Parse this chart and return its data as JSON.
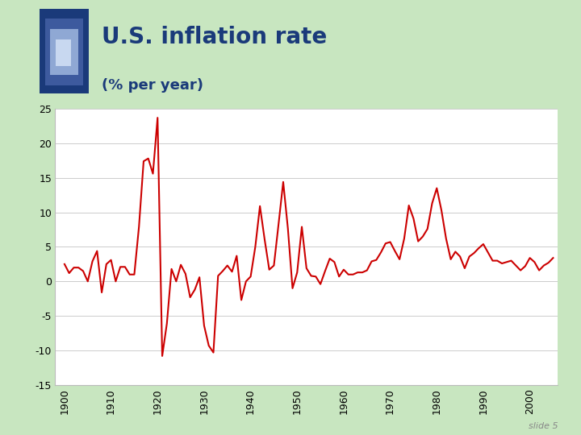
{
  "title": "U.S. inflation rate",
  "subtitle": "(% per year)",
  "title_color": "#1a3a7a",
  "subtitle_color": "#1a3a7a",
  "line_color": "#cc0000",
  "background_color": "#ffffff",
  "slide_bg_color": "#c8e6c0",
  "ylim": [
    -15,
    25
  ],
  "yticks": [
    -15,
    -10,
    -5,
    0,
    5,
    10,
    15,
    20,
    25
  ],
  "xtick_years": [
    1900,
    1910,
    1920,
    1930,
    1940,
    1950,
    1960,
    1970,
    1980,
    1990,
    2000
  ],
  "slide_label": "slide 5",
  "years": [
    1900,
    1901,
    1902,
    1903,
    1904,
    1905,
    1906,
    1907,
    1908,
    1909,
    1910,
    1911,
    1912,
    1913,
    1914,
    1915,
    1916,
    1917,
    1918,
    1919,
    1920,
    1921,
    1922,
    1923,
    1924,
    1925,
    1926,
    1927,
    1928,
    1929,
    1930,
    1931,
    1932,
    1933,
    1934,
    1935,
    1936,
    1937,
    1938,
    1939,
    1940,
    1941,
    1942,
    1943,
    1944,
    1945,
    1946,
    1947,
    1948,
    1949,
    1950,
    1951,
    1952,
    1953,
    1954,
    1955,
    1956,
    1957,
    1958,
    1959,
    1960,
    1961,
    1962,
    1963,
    1964,
    1965,
    1966,
    1967,
    1968,
    1969,
    1970,
    1971,
    1972,
    1973,
    1974,
    1975,
    1976,
    1977,
    1978,
    1979,
    1980,
    1981,
    1982,
    1983,
    1984,
    1985,
    1986,
    1987,
    1988,
    1989,
    1990,
    1991,
    1992,
    1993,
    1994,
    1995,
    1996,
    1997,
    1998,
    1999,
    2000,
    2001,
    2002,
    2003,
    2004,
    2005
  ],
  "inflation": [
    2.5,
    1.2,
    2.0,
    2.0,
    1.5,
    0.0,
    2.9,
    4.4,
    -1.6,
    2.5,
    3.1,
    0.0,
    2.1,
    2.1,
    1.0,
    1.0,
    7.9,
    17.4,
    17.8,
    15.6,
    23.7,
    -10.8,
    -6.1,
    1.8,
    0.0,
    2.4,
    1.1,
    -2.3,
    -1.2,
    0.6,
    -6.4,
    -9.3,
    -10.3,
    0.8,
    1.5,
    2.3,
    1.4,
    3.7,
    -2.7,
    0.0,
    0.7,
    5.0,
    10.9,
    6.1,
    1.7,
    2.3,
    8.3,
    14.4,
    7.7,
    -1.0,
    1.3,
    7.9,
    1.9,
    0.8,
    0.7,
    -0.4,
    1.5,
    3.3,
    2.8,
    0.7,
    1.7,
    1.0,
    1.0,
    1.3,
    1.3,
    1.6,
    2.9,
    3.1,
    4.2,
    5.5,
    5.7,
    4.4,
    3.2,
    6.2,
    11.0,
    9.1,
    5.8,
    6.5,
    7.6,
    11.3,
    13.5,
    10.3,
    6.2,
    3.2,
    4.3,
    3.6,
    1.9,
    3.6,
    4.1,
    4.8,
    5.4,
    4.2,
    3.0,
    3.0,
    2.6,
    2.8,
    3.0,
    2.3,
    1.6,
    2.2,
    3.4,
    2.8,
    1.6,
    2.3,
    2.7,
    3.4
  ],
  "icon_outer_color": "#1a3a7a",
  "icon_mid_color": "#3d5a9e",
  "icon_inner_color": "#8fa8d4",
  "icon_center_color": "#c8d8f0"
}
